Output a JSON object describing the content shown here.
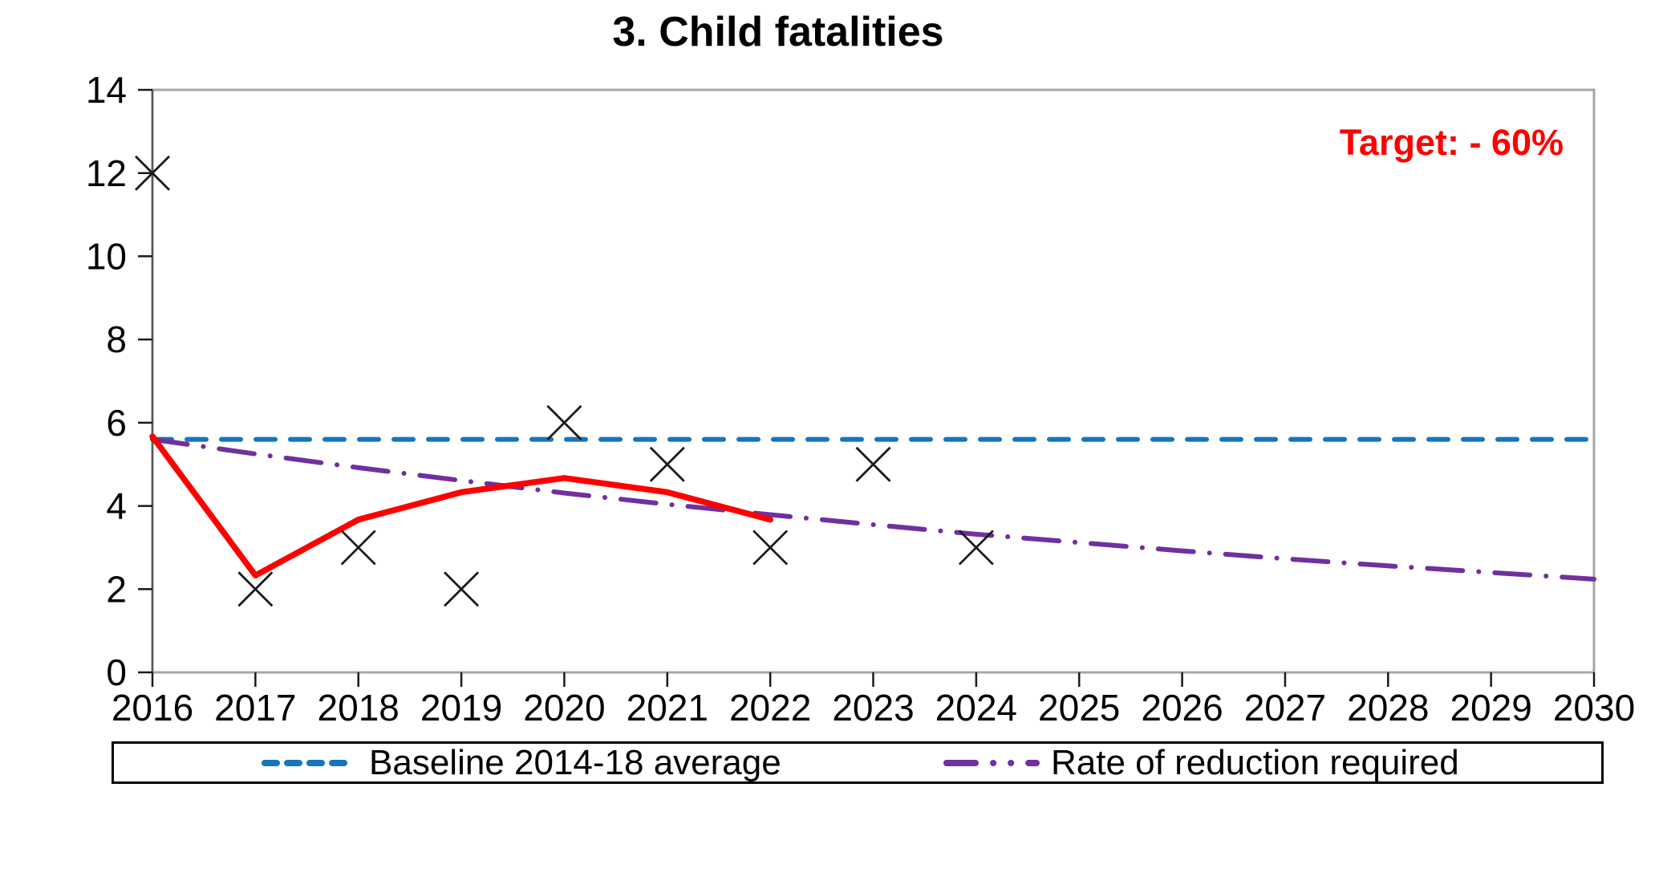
{
  "title": "3. Child fatalities",
  "annotation": {
    "target_label": "Target: - 60%"
  },
  "legend": {
    "position": "bottom",
    "items": [
      {
        "label": "Baseline 2014-18 average",
        "series": "baseline"
      },
      {
        "label": "Rate of reduction required",
        "series": "required"
      }
    ]
  },
  "colors": {
    "baseline": "#1675BD",
    "required": "#7030A0",
    "trend": "#FF0000",
    "marker": "#1a1a1a",
    "target_text": "#FF0000",
    "plot_border": "#A6A6A6",
    "axis": "#595959",
    "tick": "#1a1a1a"
  },
  "chart_data": {
    "type": "combo",
    "x": [
      2016,
      2017,
      2018,
      2019,
      2020,
      2021,
      2022,
      2023,
      2024,
      2025,
      2026,
      2027,
      2028,
      2029,
      2030
    ],
    "ylim": [
      0,
      14
    ],
    "y_ticks": [
      0,
      2,
      4,
      6,
      8,
      10,
      12,
      14
    ],
    "grid": false,
    "legend_position": "bottom",
    "series": [
      {
        "id": "baseline",
        "type": "line",
        "dash": "dashed",
        "color_key": "baseline",
        "x": [
          2016,
          2030
        ],
        "values": [
          5.6,
          5.6
        ]
      },
      {
        "id": "required",
        "type": "line",
        "dash": "dashdot",
        "color_key": "required",
        "x": [
          2016,
          2017,
          2018,
          2019,
          2020,
          2021,
          2022,
          2023,
          2024,
          2025,
          2026,
          2027,
          2028,
          2029,
          2030
        ],
        "values": [
          5.6,
          5.25,
          4.92,
          4.61,
          4.31,
          4.04,
          3.79,
          3.55,
          3.32,
          3.12,
          2.92,
          2.73,
          2.56,
          2.4,
          2.24
        ]
      },
      {
        "id": "trend",
        "type": "line",
        "dash": "solid",
        "color_key": "trend",
        "x": [
          2016,
          2017,
          2018,
          2019,
          2020,
          2021,
          2022
        ],
        "values": [
          5.67,
          2.33,
          3.67,
          4.33,
          4.67,
          4.33,
          3.67
        ]
      },
      {
        "id": "observed",
        "type": "scatter",
        "marker": "x",
        "color_key": "marker",
        "x": [
          2016,
          2017,
          2018,
          2019,
          2020,
          2021,
          2022,
          2023,
          2024
        ],
        "values": [
          12,
          2,
          3,
          2,
          6,
          5,
          3,
          5,
          3
        ]
      }
    ]
  }
}
